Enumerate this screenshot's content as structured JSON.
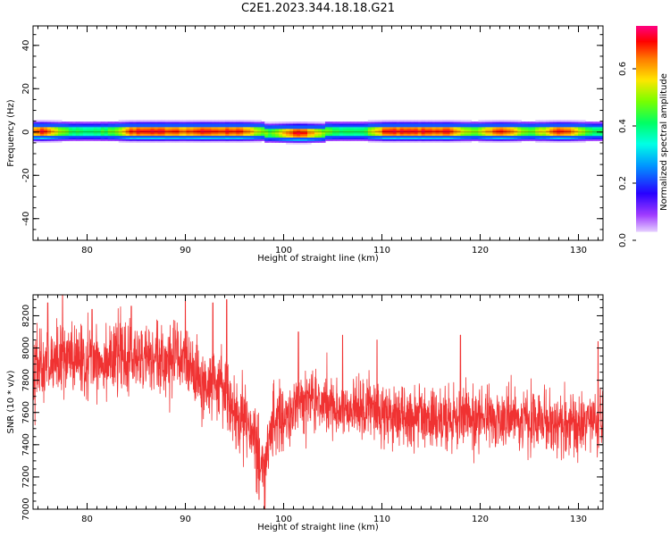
{
  "title": "C2E1.2023.344.18.18.G21",
  "chart_data": [
    {
      "type": "heatmap",
      "xlabel": "Height of straight line (km)",
      "ylabel": "Frequency (Hz)",
      "xlim": [
        74.5,
        132.5
      ],
      "ylim": [
        -50,
        49
      ],
      "xticks": [
        80,
        90,
        100,
        110,
        120,
        130
      ],
      "yticks": [
        40,
        20,
        0,
        -20,
        -40
      ],
      "ytick_labels": [
        "40",
        "20",
        "0",
        "-20",
        "-40"
      ],
      "signal_band_hz": [
        -3,
        3
      ],
      "signal_center_hz": 0,
      "peak_heights_km": [
        75,
        85,
        88,
        92,
        95,
        101.5,
        111,
        113,
        116,
        122,
        128
      ],
      "colorbar": {
        "label": "Normalized spectral amplitude",
        "range": [
          0,
          0.75
        ],
        "ticks": [
          0.0,
          0.2,
          0.4,
          0.6
        ],
        "tick_labels": [
          "0.0",
          "0.2",
          "0.4",
          "0.6"
        ],
        "colormap": "gist_rainbow_r",
        "low_color": "#ffffff",
        "high_color": "#ff0080"
      }
    },
    {
      "type": "line",
      "xlabel": "Height of straight line (km)",
      "ylabel": "SNR (10 * v/v)",
      "xlim": [
        74.5,
        132.5
      ],
      "ylim": [
        7000,
        8330
      ],
      "xticks": [
        80,
        90,
        100,
        110,
        120,
        130
      ],
      "yticks": [
        7000,
        7200,
        7400,
        7600,
        7800,
        8000,
        8200
      ],
      "color": "#f03232",
      "series": [
        {
          "trend": [
            {
              "x": 74.5,
              "y": 7880
            },
            {
              "x": 77,
              "y": 7920
            },
            {
              "x": 80,
              "y": 7930
            },
            {
              "x": 84,
              "y": 7940
            },
            {
              "x": 88,
              "y": 7920
            },
            {
              "x": 90,
              "y": 7930
            },
            {
              "x": 91,
              "y": 7800
            },
            {
              "x": 92,
              "y": 7720
            },
            {
              "x": 93,
              "y": 7820
            },
            {
              "x": 94,
              "y": 7720
            },
            {
              "x": 95,
              "y": 7580
            },
            {
              "x": 96,
              "y": 7560
            },
            {
              "x": 97,
              "y": 7420
            },
            {
              "x": 98,
              "y": 7260
            },
            {
              "x": 99,
              "y": 7560
            },
            {
              "x": 100,
              "y": 7560
            },
            {
              "x": 102,
              "y": 7680
            },
            {
              "x": 105,
              "y": 7640
            },
            {
              "x": 110,
              "y": 7600
            },
            {
              "x": 115,
              "y": 7560
            },
            {
              "x": 120,
              "y": 7570
            },
            {
              "x": 125,
              "y": 7540
            },
            {
              "x": 130,
              "y": 7520
            },
            {
              "x": 132.5,
              "y": 7580
            }
          ],
          "spikes": [
            {
              "x": 76,
              "y": 8280
            },
            {
              "x": 77.5,
              "y": 8330
            },
            {
              "x": 80.5,
              "y": 8240
            },
            {
              "x": 84.5,
              "y": 8260
            },
            {
              "x": 90,
              "y": 8330
            },
            {
              "x": 92.8,
              "y": 8280
            },
            {
              "x": 94.2,
              "y": 8300
            },
            {
              "x": 97.5,
              "y": 7060
            },
            {
              "x": 98.1,
              "y": 7000
            },
            {
              "x": 101.5,
              "y": 8100
            },
            {
              "x": 106,
              "y": 8080
            },
            {
              "x": 109.5,
              "y": 8050
            },
            {
              "x": 118,
              "y": 8080
            },
            {
              "x": 132,
              "y": 8040
            }
          ]
        }
      ]
    }
  ]
}
